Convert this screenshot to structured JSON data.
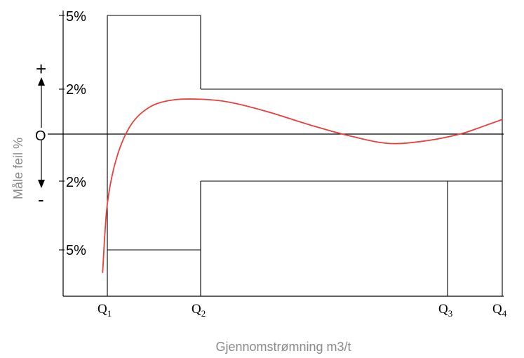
{
  "chart_data": {
    "type": "line",
    "xlabel": "Gjennomstrømning m3/t",
    "ylabel": "Måle feil %",
    "y_tick_labels": [
      "5%",
      "2%",
      "2%",
      "5%"
    ],
    "x_markers": [
      {
        "label": "Q",
        "sub": "1"
      },
      {
        "label": "Q",
        "sub": "2"
      },
      {
        "label": "Q",
        "sub": "3"
      },
      {
        "label": "Q",
        "sub": "4"
      }
    ],
    "sign_labels": {
      "plus": "+",
      "zero": "O",
      "minus": "-"
    },
    "tolerance_envelope": {
      "upper": [
        {
          "from": "Q1",
          "to": "Q2",
          "value": 5
        },
        {
          "from": "Q2",
          "to": "Q4",
          "value": 2
        }
      ],
      "lower": [
        {
          "from": "Q1",
          "to": "Q2",
          "value": -5
        },
        {
          "from": "Q2",
          "to": "Q4",
          "value": -2
        }
      ]
    },
    "series": [
      {
        "color": "#e8403a",
        "points": [
          [
            0.95,
            -6.0
          ],
          [
            1.0,
            -3.0
          ],
          [
            1.1,
            -1.0
          ],
          [
            1.25,
            0.4
          ],
          [
            1.45,
            1.2
          ],
          [
            1.7,
            1.52
          ],
          [
            2.0,
            1.55
          ],
          [
            2.3,
            1.42
          ],
          [
            2.7,
            1.0
          ],
          [
            3.2,
            0.35
          ],
          [
            3.6,
            -0.1
          ],
          [
            4.0,
            -0.4
          ],
          [
            4.4,
            -0.28
          ],
          [
            4.75,
            0.0
          ],
          [
            5.0,
            0.35
          ],
          [
            5.2,
            0.65
          ]
        ]
      }
    ],
    "baseline_color": "#000000"
  }
}
